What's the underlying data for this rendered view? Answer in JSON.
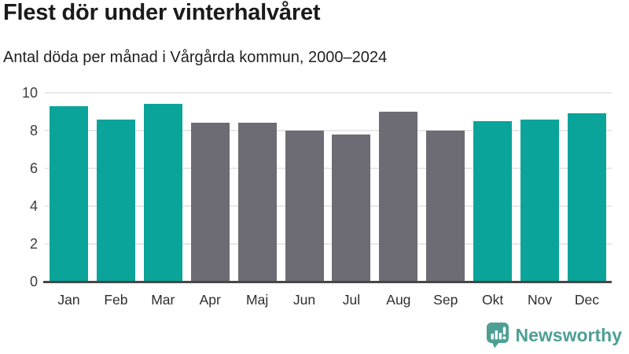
{
  "header": {
    "title": "Flest dör under vinterhalvåret",
    "subtitle": "Antal döda per månad i Vårgårda kommun, 2000–2024"
  },
  "chart_data": {
    "type": "bar",
    "title": "Flest dör under vinterhalvåret",
    "subtitle": "Antal döda per månad i Vårgårda kommun, 2000–2024",
    "categories": [
      "Jan",
      "Feb",
      "Mar",
      "Apr",
      "Maj",
      "Jun",
      "Jul",
      "Aug",
      "Sep",
      "Okt",
      "Nov",
      "Dec"
    ],
    "values": [
      9.3,
      8.6,
      9.4,
      8.4,
      8.4,
      8.0,
      7.8,
      9.0,
      8.0,
      8.5,
      8.6,
      8.9
    ],
    "highlighted": [
      true,
      true,
      true,
      false,
      false,
      false,
      false,
      false,
      false,
      true,
      true,
      true
    ],
    "ylim": [
      0,
      10
    ],
    "yticks": [
      0,
      2,
      4,
      6,
      8,
      10
    ],
    "grid": true,
    "legend_position": "none",
    "colors": {
      "highlight": "#0aa49a",
      "muted": "#6d6c75",
      "gridline": "#e8e8e8",
      "axis_line": "#474747"
    }
  },
  "branding": {
    "logo_text": "Newsworthy",
    "logo_color": "#4d9f93",
    "logo_icon": "bar-chart-speech-bubble"
  }
}
